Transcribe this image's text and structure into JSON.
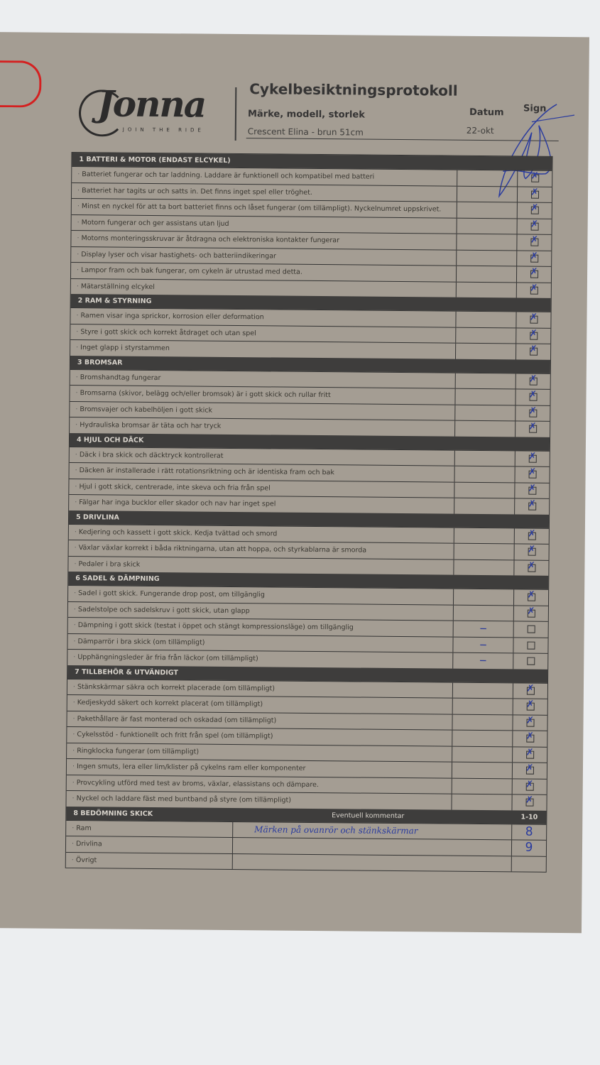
{
  "header": {
    "logo_text": "Jonna",
    "logo_tagline": "JOIN THE RIDE",
    "title": "Cykelbesiktningsprotokoll",
    "model_label": "Märke, modell, storlek",
    "model_value": "Crescent Elina - brun 51cm",
    "date_label": "Datum",
    "date_value": "22-okt",
    "sign_label": "Sign"
  },
  "colors": {
    "paper": "#a49d93",
    "header_bar": "#3e3d3c",
    "ink": "#2b3c9e"
  },
  "sections": [
    {
      "title": "1 BATTERI & MOTOR (ENDAST ELCYKEL)",
      "items": [
        {
          "text": "Batteriet fungerar och tar laddning. Laddare är funktionell och kompatibel med batteri",
          "mark": "",
          "checked": true
        },
        {
          "text": "Batteriet har tagits ur och satts in. Det finns inget spel eller tröghet.",
          "mark": "",
          "checked": true
        },
        {
          "text": "Minst en nyckel för att ta bort batteriet finns och låset fungerar (om tillämpligt). Nyckelnumret uppskrivet.",
          "mark": "",
          "checked": true
        },
        {
          "text": "Motorn fungerar och ger assistans utan ljud",
          "mark": "",
          "checked": true
        },
        {
          "text": "Motorns monteringsskruvar är åtdragna och elektroniska kontakter fungerar",
          "mark": "",
          "checked": true
        },
        {
          "text": "Display lyser och visar hastighets- och batteriindikeringar",
          "mark": "",
          "checked": true
        },
        {
          "text": "Lampor fram och bak fungerar, om cykeln är utrustad med detta.",
          "mark": "",
          "checked": true
        },
        {
          "text": "Mätarställning elcykel",
          "mark": "",
          "checked": true
        }
      ]
    },
    {
      "title": "2 RAM & STYRNING",
      "items": [
        {
          "text": "Ramen visar inga sprickor, korrosion eller deformation",
          "mark": "",
          "checked": true
        },
        {
          "text": "Styre i gott skick och korrekt åtdraget och utan spel",
          "mark": "",
          "checked": true
        },
        {
          "text": "Inget glapp i styrstammen",
          "mark": "",
          "checked": true
        }
      ]
    },
    {
      "title": "3 BROMSAR",
      "items": [
        {
          "text": "Bromshandtag fungerar",
          "mark": "",
          "checked": true
        },
        {
          "text": "Bromsarna (skivor, belägg och/eller bromsok) är i gott skick och rullar fritt",
          "mark": "",
          "checked": true
        },
        {
          "text": "Bromsvajer och kabelhöljen i gott skick",
          "mark": "",
          "checked": true
        },
        {
          "text": "Hydrauliska bromsar är täta och har tryck",
          "mark": "",
          "checked": true
        }
      ]
    },
    {
      "title": "4 HJUL OCH DÄCK",
      "items": [
        {
          "text": "Däck i bra skick och däcktryck kontrollerat",
          "mark": "",
          "checked": true
        },
        {
          "text": "Däcken är installerade i rätt rotationsriktning och är identiska fram och bak",
          "mark": "",
          "checked": true
        },
        {
          "text": "Hjul i gott skick, centrerade, inte skeva och fria från spel",
          "mark": "",
          "checked": true
        },
        {
          "text": "Fälgar har inga bucklor eller skador och nav har inget spel",
          "mark": "",
          "checked": true
        }
      ]
    },
    {
      "title": "5 DRIVLINA",
      "items": [
        {
          "text": "Kedjering och kassett i gott skick. Kedja tvättad och smord",
          "mark": "",
          "checked": true
        },
        {
          "text": "Växlar växlar korrekt i båda riktningarna, utan att hoppa, och styrkablarna är smorda",
          "mark": "",
          "checked": true
        },
        {
          "text": "Pedaler i bra skick",
          "mark": "",
          "checked": true
        }
      ]
    },
    {
      "title": "6 SADEL & DÄMPNING",
      "items": [
        {
          "text": "Sadel i gott skick. Fungerande drop post, om tillgänglig",
          "mark": "",
          "checked": true
        },
        {
          "text": "Sadelstolpe och sadelskruv i gott skick, utan glapp",
          "mark": "",
          "checked": true
        },
        {
          "text": "Dämpning i gott skick (testat i öppet och stängt kompressionsläge) om tillgänglig",
          "mark": "—",
          "checked": false
        },
        {
          "text": "Dämparrör i bra skick (om tillämpligt)",
          "mark": "—",
          "checked": false
        },
        {
          "text": "Upphängningsleder är fria från läckor (om tillämpligt)",
          "mark": "—",
          "checked": false
        }
      ]
    },
    {
      "title": "7 TILLBEHÖR & UTVÄNDIGT",
      "items": [
        {
          "text": "Stänkskärmar säkra och korrekt placerade (om tillämpligt)",
          "mark": "",
          "checked": true
        },
        {
          "text": "Kedjeskydd säkert och korrekt placerat (om tillämpligt)",
          "mark": "",
          "checked": true
        },
        {
          "text": "Pakethållare är fast monterad och oskadad (om tillämpligt)",
          "mark": "",
          "checked": true
        },
        {
          "text": "Cykelsstöd - funktionellt och fritt från spel (om tillämpligt)",
          "mark": "",
          "checked": true
        },
        {
          "text": "Ringklocka fungerar (om tillämpligt)",
          "mark": "",
          "checked": true
        },
        {
          "text": "Ingen smuts, lera eller lim/klister på cykelns ram eller komponenter",
          "mark": "",
          "checked": true
        },
        {
          "text": "Provcykling utförd med test av broms, växlar, elassistans och dämpare.",
          "mark": "",
          "checked": true
        },
        {
          "text": "Nyckel och laddare fäst med buntband på styre (om tillämpligt)",
          "mark": "",
          "checked": true
        }
      ]
    }
  ],
  "grading": {
    "title": "8 BEDÖMNING SKICK",
    "comment_header": "Eventuell kommentar",
    "score_header": "1-10",
    "rows": [
      {
        "label": "Ram",
        "comment": "Märken på ovanrör och stänkskärmar",
        "score": "8"
      },
      {
        "label": "Drivlina",
        "comment": "",
        "score": "9"
      },
      {
        "label": "Övrigt",
        "comment": "",
        "score": ""
      }
    ]
  }
}
